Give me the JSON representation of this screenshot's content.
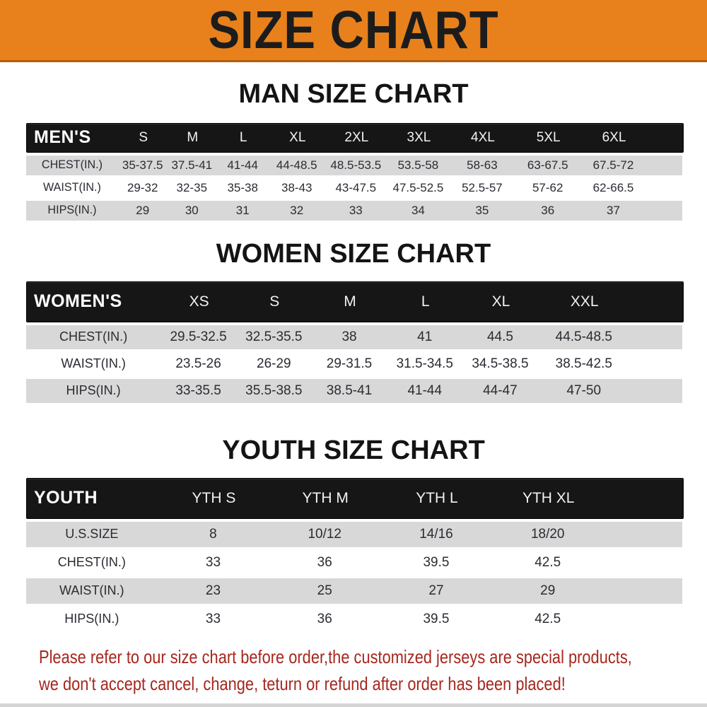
{
  "banner": {
    "title": "SIZE CHART",
    "background": "#e8811c",
    "text_color": "#1c1c1c"
  },
  "sections": {
    "men": {
      "heading": "MAN SIZE CHART",
      "header_label": "MEN'S",
      "sizes": [
        "S",
        "M",
        "L",
        "XL",
        "2XL",
        "3XL",
        "4XL",
        "5XL",
        "6XL"
      ],
      "rows": [
        {
          "label": "CHEST(IN.)",
          "values": [
            "35-37.5",
            "37.5-41",
            "41-44",
            "44-48.5",
            "48.5-53.5",
            "53.5-58",
            "58-63",
            "63-67.5",
            "67.5-72"
          ]
        },
        {
          "label": "WAIST(IN.)",
          "values": [
            "29-32",
            "32-35",
            "35-38",
            "38-43",
            "43-47.5",
            "47.5-52.5",
            "52.5-57",
            "57-62",
            "62-66.5"
          ]
        },
        {
          "label": "HIPS(IN.)",
          "values": [
            "29",
            "30",
            "31",
            "32",
            "33",
            "34",
            "35",
            "36",
            "37"
          ]
        }
      ]
    },
    "women": {
      "heading": "WOMEN SIZE CHART",
      "header_label": "WOMEN'S",
      "sizes": [
        "XS",
        "S",
        "M",
        "L",
        "XL",
        "XXL"
      ],
      "rows": [
        {
          "label": "CHEST(IN.)",
          "values": [
            "29.5-32.5",
            "32.5-35.5",
            "38",
            "41",
            "44.5",
            "44.5-48.5"
          ]
        },
        {
          "label": "WAIST(IN.)",
          "values": [
            "23.5-26",
            "26-29",
            "29-31.5",
            "31.5-34.5",
            "34.5-38.5",
            "38.5-42.5"
          ]
        },
        {
          "label": "HIPS(IN.)",
          "values": [
            "33-35.5",
            "35.5-38.5",
            "38.5-41",
            "41-44",
            "44-47",
            "47-50"
          ]
        }
      ]
    },
    "youth": {
      "heading": "YOUTH SIZE CHART",
      "header_label": "YOUTH",
      "sizes": [
        "YTH S",
        "YTH M",
        "YTH L",
        "YTH XL"
      ],
      "rows": [
        {
          "label": "U.S.SIZE",
          "values": [
            "8",
            "10/12",
            "14/16",
            "18/20"
          ]
        },
        {
          "label": "CHEST(IN.)",
          "values": [
            "33",
            "36",
            "39.5",
            "42.5"
          ]
        },
        {
          "label": "WAIST(IN.)",
          "values": [
            "23",
            "25",
            "27",
            "29"
          ]
        },
        {
          "label": "HIPS(IN.)",
          "values": [
            "33",
            "36",
            "39.5",
            "42.5"
          ]
        }
      ]
    }
  },
  "footer": {
    "line1": "Please refer to our size chart before order,the customized jerseys are special products,",
    "line2": "we don't accept cancel, change, teturn or refund after order has been placed!",
    "text_color": "#a6271e"
  }
}
